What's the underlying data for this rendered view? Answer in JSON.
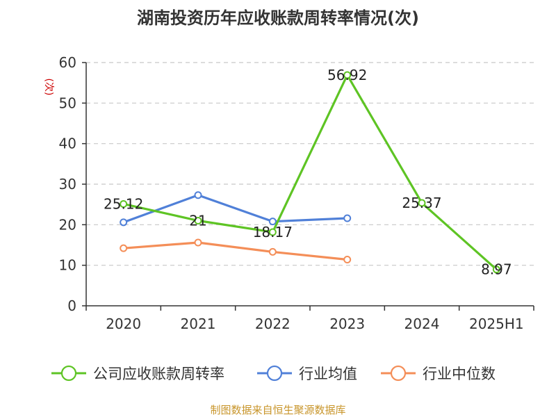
{
  "chart_data": {
    "type": "line",
    "title": "湖南投资历年应收账款周转率情况(次)",
    "ylabel": "(次)",
    "xlabel": "",
    "categories": [
      "2020",
      "2021",
      "2022",
      "2023",
      "2024",
      "2025H1"
    ],
    "ylim": [
      0,
      60
    ],
    "yticks": [
      0,
      10,
      20,
      30,
      40,
      50,
      60
    ],
    "grid": true,
    "legend_position": "bottom",
    "series": [
      {
        "name": "公司应收账款周转率",
        "color": "#5ec424",
        "values": [
          25.12,
          21,
          18.17,
          56.92,
          25.37,
          8.97
        ],
        "labels": [
          "25.12",
          "21",
          "18.17",
          "56.92",
          "25.37",
          "8.97"
        ]
      },
      {
        "name": "行业均值",
        "color": "#5080d8",
        "values": [
          20.6,
          27.3,
          20.8,
          21.6,
          null,
          null
        ]
      },
      {
        "name": "行业中位数",
        "color": "#f48e58",
        "values": [
          14.2,
          15.6,
          13.3,
          11.4,
          null,
          null
        ]
      }
    ]
  },
  "source_text": "制图数据来自恒生聚源数据库"
}
